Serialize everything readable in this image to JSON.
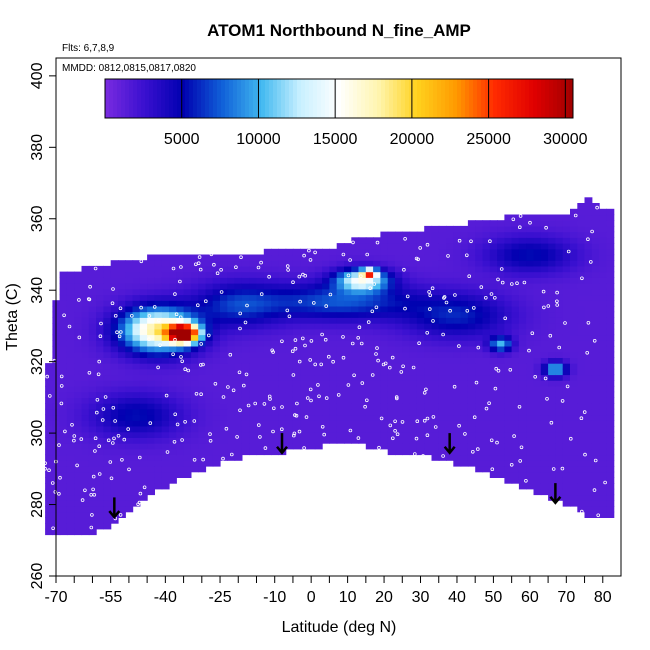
{
  "chart_data": {
    "type": "heatmap",
    "title": "ATOM1 Northbound N_fine_AMP",
    "flights_note": "Flts: 6,7,8,9",
    "dates_note": "MMDD: 0812,0815,0817,0820",
    "xlabel": "Latitude (deg N)",
    "ylabel": "Theta (C)",
    "xlim": [
      -70,
      85
    ],
    "ylim": [
      260,
      405
    ],
    "x_ticks": [
      -70,
      -55,
      -40,
      -25,
      -10,
      0,
      10,
      20,
      30,
      40,
      50,
      60,
      70,
      80
    ],
    "x_tick_labels": [
      "-70",
      "-55",
      "-40",
      "-25",
      "-10",
      "0",
      "10",
      "20",
      "30",
      "40",
      "50",
      "60",
      "70",
      "80"
    ],
    "x_minor_ticks": [
      -65,
      -60,
      -50,
      -45,
      -35,
      -30,
      -20,
      -15,
      -5,
      5,
      15,
      25,
      35,
      45,
      55,
      65,
      75
    ],
    "y_ticks": [
      260,
      280,
      300,
      320,
      340,
      360,
      380,
      400
    ],
    "y_tick_labels": [
      "260",
      "280",
      "300",
      "320",
      "340",
      "360",
      "380",
      "400"
    ],
    "colorbar": {
      "range": [
        0,
        30500
      ],
      "ticks": [
        5000,
        10000,
        15000,
        20000,
        25000,
        30000
      ],
      "tick_labels": [
        "5000",
        "10000",
        "15000",
        "20000",
        "25000",
        "30000"
      ],
      "colors": [
        "#7a2be0",
        "#3a10d0",
        "#0000b0",
        "#1060d8",
        "#40b8f0",
        "#c8f0ff",
        "#ffffff",
        "#fff5b0",
        "#ffd21e",
        "#ff9a00",
        "#ff2a00",
        "#e00000",
        "#a00000"
      ]
    },
    "coverage_top": [
      [
        -73,
        312
      ],
      [
        -69,
        345
      ],
      [
        -63,
        346
      ],
      [
        -48,
        349
      ],
      [
        -30,
        350
      ],
      [
        -10,
        351
      ],
      [
        5,
        352
      ],
      [
        15,
        355
      ],
      [
        30,
        357
      ],
      [
        45,
        359
      ],
      [
        55,
        361
      ],
      [
        70,
        362
      ],
      [
        77,
        366
      ],
      [
        80,
        363
      ],
      [
        81,
        345
      ],
      [
        82,
        330
      ],
      [
        82,
        300
      ]
    ],
    "coverage_bottom": [
      [
        -73,
        272
      ],
      [
        -60,
        272
      ],
      [
        -55,
        274
      ],
      [
        -45,
        282
      ],
      [
        -35,
        288
      ],
      [
        -20,
        293
      ],
      [
        -5,
        295
      ],
      [
        10,
        298
      ],
      [
        25,
        294
      ],
      [
        35,
        293
      ],
      [
        45,
        290
      ],
      [
        60,
        284
      ],
      [
        68,
        281
      ],
      [
        76,
        277
      ],
      [
        82,
        276
      ]
    ],
    "hotspots": [
      {
        "lat": -42,
        "theta": 329,
        "value": 17000,
        "spread_lat": 10,
        "spread_theta": 6
      },
      {
        "lat": -35,
        "theta": 328,
        "value": 30000,
        "spread_lat": 4,
        "spread_theta": 2.5
      },
      {
        "lat": 14,
        "theta": 343,
        "value": 13000,
        "spread_lat": 7,
        "spread_theta": 3
      },
      {
        "lat": 16,
        "theta": 345,
        "value": 21000,
        "spread_lat": 2,
        "spread_theta": 1
      },
      {
        "lat": 8,
        "theta": 337,
        "value": 6000,
        "spread_lat": 20,
        "spread_theta": 5
      },
      {
        "lat": -20,
        "theta": 336,
        "value": 5000,
        "spread_lat": 12,
        "spread_theta": 6
      },
      {
        "lat": 40,
        "theta": 333,
        "value": 4500,
        "spread_lat": 14,
        "spread_theta": 6
      },
      {
        "lat": 52,
        "theta": 325,
        "value": 8500,
        "spread_lat": 3,
        "spread_theta": 2
      },
      {
        "lat": 67,
        "theta": 318,
        "value": 9500,
        "spread_lat": 3,
        "spread_theta": 2
      },
      {
        "lat": -48,
        "theta": 305,
        "value": 4000,
        "spread_lat": 12,
        "spread_theta": 6
      },
      {
        "lat": 60,
        "theta": 350,
        "value": 4000,
        "spread_lat": 12,
        "spread_theta": 5
      }
    ],
    "arrows": [
      {
        "lat": -54,
        "theta": 282
      },
      {
        "lat": -8,
        "theta": 300
      },
      {
        "lat": 38,
        "theta": 300
      },
      {
        "lat": 67,
        "theta": 286
      }
    ]
  }
}
